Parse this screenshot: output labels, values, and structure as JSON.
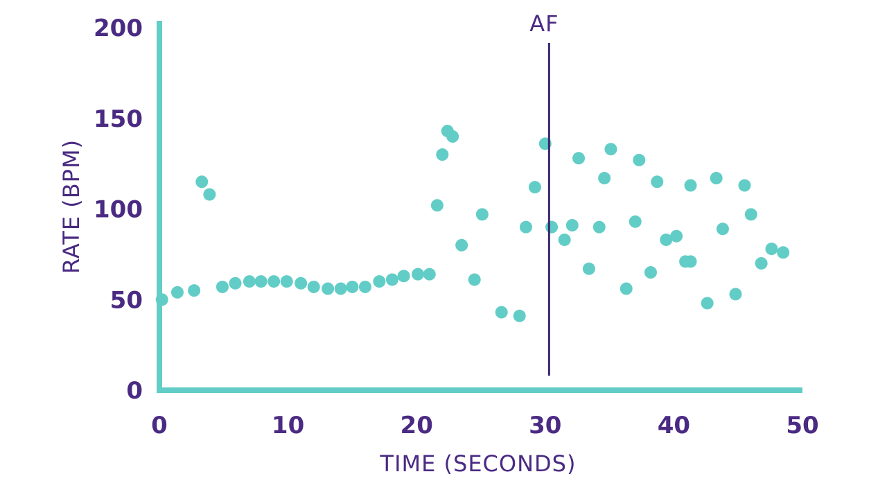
{
  "chart_data": {
    "type": "scatter",
    "title": "",
    "xlabel": "TIME (SECONDS)",
    "ylabel": "RATE (BPM)",
    "xlim": [
      0,
      50
    ],
    "ylim": [
      0,
      200
    ],
    "x_ticks": [
      0,
      10,
      20,
      30,
      40,
      50
    ],
    "y_ticks": [
      0,
      50,
      100,
      150,
      200
    ],
    "grid": false,
    "colors": {
      "points": "#62cdc6",
      "axis": "#62cdc6",
      "text": "#4a2a82",
      "annotation": "#3a2670"
    },
    "annotations": [
      {
        "label": "AF",
        "x": 30.3,
        "type": "vertical-line"
      }
    ],
    "series": [
      {
        "points": [
          [
            0.2,
            50
          ],
          [
            1.4,
            54
          ],
          [
            2.7,
            55
          ],
          [
            3.3,
            115
          ],
          [
            3.9,
            108
          ],
          [
            4.9,
            57
          ],
          [
            5.9,
            59
          ],
          [
            7.0,
            60
          ],
          [
            7.9,
            60
          ],
          [
            8.9,
            60
          ],
          [
            9.9,
            60
          ],
          [
            11.0,
            59
          ],
          [
            12.0,
            57
          ],
          [
            13.1,
            56
          ],
          [
            14.1,
            56
          ],
          [
            15.0,
            57
          ],
          [
            16.0,
            57
          ],
          [
            17.1,
            60
          ],
          [
            18.1,
            61
          ],
          [
            19.0,
            63
          ],
          [
            20.1,
            64
          ],
          [
            21.0,
            64
          ],
          [
            21.6,
            102
          ],
          [
            22.0,
            130
          ],
          [
            22.4,
            143
          ],
          [
            22.8,
            140
          ],
          [
            23.5,
            80
          ],
          [
            24.5,
            61
          ],
          [
            25.1,
            97
          ],
          [
            26.6,
            43
          ],
          [
            28.0,
            41
          ],
          [
            28.5,
            90
          ],
          [
            29.2,
            112
          ],
          [
            30.0,
            136
          ],
          [
            30.5,
            90
          ],
          [
            31.5,
            83
          ],
          [
            32.1,
            91
          ],
          [
            32.6,
            128
          ],
          [
            33.4,
            67
          ],
          [
            34.2,
            90
          ],
          [
            34.6,
            117
          ],
          [
            35.1,
            133
          ],
          [
            36.3,
            56
          ],
          [
            37.0,
            93
          ],
          [
            37.3,
            127
          ],
          [
            38.2,
            65
          ],
          [
            38.7,
            115
          ],
          [
            39.4,
            83
          ],
          [
            40.2,
            85
          ],
          [
            40.9,
            71
          ],
          [
            41.3,
            113
          ],
          [
            41.3,
            71
          ],
          [
            42.6,
            48
          ],
          [
            43.3,
            117
          ],
          [
            43.8,
            89
          ],
          [
            44.8,
            53
          ],
          [
            45.5,
            113
          ],
          [
            46.0,
            97
          ],
          [
            46.8,
            70
          ],
          [
            47.6,
            78
          ],
          [
            48.5,
            76
          ]
        ]
      }
    ]
  }
}
